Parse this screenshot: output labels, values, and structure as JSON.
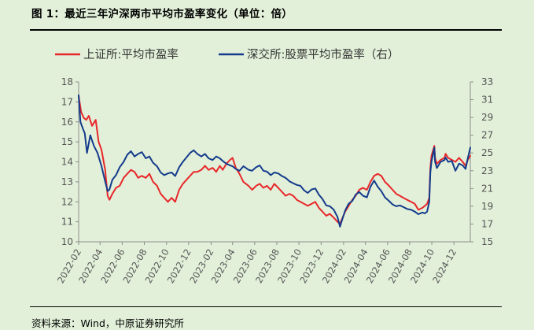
{
  "figure": {
    "title": "图 1：最近三年沪深两市平均市盈率变化（单位：倍）",
    "source": "资料来源：Wind，中原证券研究所"
  },
  "chart_data": {
    "type": "line",
    "title": "",
    "xlabel": "",
    "ylabel": "",
    "x_ticks": [
      "2022-02",
      "2022-04",
      "2022-06",
      "2022-08",
      "2022-10",
      "2022-12",
      "2023-02",
      "2023-04",
      "2023-06",
      "2023-08",
      "2023-10",
      "2023-12",
      "2024-02",
      "2024-04",
      "2024-06",
      "2024-08",
      "2024-10",
      "2024-12"
    ],
    "x_range": [
      "2022-02-01",
      "2025-01-15"
    ],
    "y_left": {
      "min": 10,
      "max": 18,
      "ticks": [
        10,
        11,
        12,
        13,
        14,
        15,
        16,
        17,
        18
      ]
    },
    "y_right": {
      "min": 15,
      "max": 33,
      "ticks": [
        15,
        17,
        19,
        21,
        23,
        25,
        27,
        29,
        31,
        33
      ]
    },
    "legend_position": "top",
    "grid": false,
    "series": [
      {
        "name": "上证所:平均市盈率",
        "axis": "left",
        "color": "#e8272a",
        "points": [
          [
            "2022-02-01",
            17.3
          ],
          [
            "2022-02-08",
            16.5
          ],
          [
            "2022-02-15",
            16.2
          ],
          [
            "2022-02-22",
            16.1
          ],
          [
            "2022-03-01",
            16.3
          ],
          [
            "2022-03-10",
            15.8
          ],
          [
            "2022-03-20",
            16.1
          ],
          [
            "2022-03-28",
            15.0
          ],
          [
            "2022-04-05",
            14.6
          ],
          [
            "2022-04-15",
            13.6
          ],
          [
            "2022-04-22",
            12.3
          ],
          [
            "2022-04-27",
            12.1
          ],
          [
            "2022-05-05",
            12.4
          ],
          [
            "2022-05-15",
            12.7
          ],
          [
            "2022-05-25",
            12.8
          ],
          [
            "2022-06-05",
            13.2
          ],
          [
            "2022-06-15",
            13.4
          ],
          [
            "2022-06-25",
            13.6
          ],
          [
            "2022-07-05",
            13.5
          ],
          [
            "2022-07-15",
            13.2
          ],
          [
            "2022-07-25",
            13.3
          ],
          [
            "2022-08-05",
            13.2
          ],
          [
            "2022-08-15",
            13.4
          ],
          [
            "2022-08-25",
            13.0
          ],
          [
            "2022-09-05",
            12.8
          ],
          [
            "2022-09-15",
            12.4
          ],
          [
            "2022-09-25",
            12.2
          ],
          [
            "2022-10-05",
            12.0
          ],
          [
            "2022-10-15",
            12.2
          ],
          [
            "2022-10-25",
            12.0
          ],
          [
            "2022-11-05",
            12.6
          ],
          [
            "2022-11-15",
            12.9
          ],
          [
            "2022-11-25",
            13.1
          ],
          [
            "2022-12-05",
            13.3
          ],
          [
            "2022-12-15",
            13.5
          ],
          [
            "2022-12-25",
            13.5
          ],
          [
            "2023-01-05",
            13.6
          ],
          [
            "2023-01-15",
            13.8
          ],
          [
            "2023-01-25",
            13.6
          ],
          [
            "2023-02-05",
            13.7
          ],
          [
            "2023-02-15",
            13.5
          ],
          [
            "2023-02-25",
            13.8
          ],
          [
            "2023-03-05",
            13.6
          ],
          [
            "2023-03-15",
            13.9
          ],
          [
            "2023-03-25",
            14.1
          ],
          [
            "2023-04-01",
            14.2
          ],
          [
            "2023-04-10",
            13.7
          ],
          [
            "2023-04-20",
            13.4
          ],
          [
            "2023-05-01",
            13.0
          ],
          [
            "2023-05-15",
            12.8
          ],
          [
            "2023-05-25",
            12.6
          ],
          [
            "2023-06-05",
            12.8
          ],
          [
            "2023-06-15",
            12.9
          ],
          [
            "2023-06-25",
            12.7
          ],
          [
            "2023-07-05",
            12.8
          ],
          [
            "2023-07-15",
            12.6
          ],
          [
            "2023-07-25",
            12.9
          ],
          [
            "2023-08-05",
            12.7
          ],
          [
            "2023-08-15",
            12.5
          ],
          [
            "2023-08-25",
            12.3
          ],
          [
            "2023-09-05",
            12.4
          ],
          [
            "2023-09-15",
            12.3
          ],
          [
            "2023-09-25",
            12.1
          ],
          [
            "2023-10-05",
            12.0
          ],
          [
            "2023-10-15",
            11.9
          ],
          [
            "2023-10-25",
            11.8
          ],
          [
            "2023-11-05",
            11.9
          ],
          [
            "2023-11-15",
            12.0
          ],
          [
            "2023-11-25",
            11.7
          ],
          [
            "2023-12-05",
            11.5
          ],
          [
            "2023-12-15",
            11.3
          ],
          [
            "2023-12-25",
            11.4
          ],
          [
            "2024-01-05",
            11.2
          ],
          [
            "2024-01-15",
            11.0
          ],
          [
            "2024-01-22",
            10.9
          ],
          [
            "2024-01-29",
            11.2
          ],
          [
            "2024-02-05",
            11.5
          ],
          [
            "2024-02-15",
            11.8
          ],
          [
            "2024-02-25",
            12.1
          ],
          [
            "2024-03-05",
            12.3
          ],
          [
            "2024-03-15",
            12.6
          ],
          [
            "2024-03-25",
            12.7
          ],
          [
            "2024-04-05",
            12.6
          ],
          [
            "2024-04-15",
            13.0
          ],
          [
            "2024-04-25",
            13.3
          ],
          [
            "2024-05-05",
            13.4
          ],
          [
            "2024-05-15",
            13.3
          ],
          [
            "2024-05-25",
            13.0
          ],
          [
            "2024-06-05",
            12.8
          ],
          [
            "2024-06-15",
            12.6
          ],
          [
            "2024-06-25",
            12.4
          ],
          [
            "2024-07-05",
            12.3
          ],
          [
            "2024-07-15",
            12.2
          ],
          [
            "2024-07-25",
            12.1
          ],
          [
            "2024-08-05",
            12.0
          ],
          [
            "2024-08-15",
            11.9
          ],
          [
            "2024-08-25",
            11.6
          ],
          [
            "2024-09-05",
            11.7
          ],
          [
            "2024-09-12",
            11.8
          ],
          [
            "2024-09-18",
            11.9
          ],
          [
            "2024-09-24",
            12.2
          ],
          [
            "2024-09-27",
            13.7
          ],
          [
            "2024-09-30",
            14.3
          ],
          [
            "2024-10-08",
            14.8
          ],
          [
            "2024-10-10",
            14.2
          ],
          [
            "2024-10-15",
            13.9
          ],
          [
            "2024-10-25",
            14.1
          ],
          [
            "2024-11-05",
            14.2
          ],
          [
            "2024-11-08",
            14.4
          ],
          [
            "2024-11-15",
            14.2
          ],
          [
            "2024-11-25",
            14.1
          ],
          [
            "2024-12-05",
            14.0
          ],
          [
            "2024-12-15",
            14.2
          ],
          [
            "2024-12-25",
            14.0
          ],
          [
            "2025-01-02",
            13.8
          ],
          [
            "2025-01-08",
            14.1
          ],
          [
            "2025-01-15",
            14.3
          ]
        ]
      },
      {
        "name": "深交所:股票平均市盈率（右）",
        "axis": "right",
        "color": "#143b8c",
        "points": [
          [
            "2022-02-01",
            31.5
          ],
          [
            "2022-02-06",
            28.5
          ],
          [
            "2022-02-12",
            27.8
          ],
          [
            "2022-02-18",
            27.2
          ],
          [
            "2022-02-24",
            25.0
          ],
          [
            "2022-03-05",
            27.0
          ],
          [
            "2022-03-15",
            25.8
          ],
          [
            "2022-03-25",
            25.0
          ],
          [
            "2022-04-05",
            23.5
          ],
          [
            "2022-04-15",
            21.8
          ],
          [
            "2022-04-22",
            20.7
          ],
          [
            "2022-04-27",
            20.9
          ],
          [
            "2022-05-05",
            22.0
          ],
          [
            "2022-05-15",
            22.5
          ],
          [
            "2022-05-25",
            23.4
          ],
          [
            "2022-06-05",
            24.0
          ],
          [
            "2022-06-15",
            24.8
          ],
          [
            "2022-06-25",
            25.2
          ],
          [
            "2022-07-05",
            24.6
          ],
          [
            "2022-07-15",
            24.9
          ],
          [
            "2022-07-25",
            25.1
          ],
          [
            "2022-08-05",
            24.4
          ],
          [
            "2022-08-15",
            24.6
          ],
          [
            "2022-08-25",
            23.9
          ],
          [
            "2022-09-05",
            23.5
          ],
          [
            "2022-09-15",
            22.8
          ],
          [
            "2022-09-25",
            22.5
          ],
          [
            "2022-10-05",
            22.7
          ],
          [
            "2022-10-15",
            22.8
          ],
          [
            "2022-10-25",
            22.4
          ],
          [
            "2022-11-05",
            23.4
          ],
          [
            "2022-11-15",
            24.0
          ],
          [
            "2022-11-25",
            24.5
          ],
          [
            "2022-12-05",
            25.0
          ],
          [
            "2022-12-15",
            25.3
          ],
          [
            "2022-12-25",
            24.9
          ],
          [
            "2023-01-05",
            24.6
          ],
          [
            "2023-01-15",
            24.9
          ],
          [
            "2023-01-25",
            24.4
          ],
          [
            "2023-02-05",
            24.2
          ],
          [
            "2023-02-15",
            24.6
          ],
          [
            "2023-02-25",
            24.4
          ],
          [
            "2023-03-05",
            24.1
          ],
          [
            "2023-03-15",
            23.8
          ],
          [
            "2023-03-25",
            23.6
          ],
          [
            "2023-04-01",
            23.5
          ],
          [
            "2023-04-10",
            23.2
          ],
          [
            "2023-04-20",
            23.0
          ],
          [
            "2023-05-01",
            23.5
          ],
          [
            "2023-05-15",
            23.1
          ],
          [
            "2023-05-25",
            23.0
          ],
          [
            "2023-06-05",
            23.4
          ],
          [
            "2023-06-15",
            23.6
          ],
          [
            "2023-06-25",
            23.0
          ],
          [
            "2023-07-05",
            22.9
          ],
          [
            "2023-07-15",
            22.5
          ],
          [
            "2023-07-25",
            22.8
          ],
          [
            "2023-08-05",
            22.7
          ],
          [
            "2023-08-15",
            22.4
          ],
          [
            "2023-08-25",
            22.2
          ],
          [
            "2023-09-05",
            21.8
          ],
          [
            "2023-09-15",
            21.6
          ],
          [
            "2023-09-25",
            21.4
          ],
          [
            "2023-10-05",
            21.3
          ],
          [
            "2023-10-15",
            20.8
          ],
          [
            "2023-10-25",
            20.5
          ],
          [
            "2023-11-05",
            20.9
          ],
          [
            "2023-11-15",
            21.0
          ],
          [
            "2023-11-25",
            20.3
          ],
          [
            "2023-12-05",
            19.8
          ],
          [
            "2023-12-15",
            19.1
          ],
          [
            "2023-12-25",
            19.0
          ],
          [
            "2024-01-05",
            18.6
          ],
          [
            "2024-01-15",
            17.8
          ],
          [
            "2024-01-22",
            16.7
          ],
          [
            "2024-01-29",
            17.6
          ],
          [
            "2024-02-05",
            18.5
          ],
          [
            "2024-02-15",
            19.3
          ],
          [
            "2024-02-25",
            19.6
          ],
          [
            "2024-03-05",
            20.3
          ],
          [
            "2024-03-15",
            20.6
          ],
          [
            "2024-03-25",
            20.2
          ],
          [
            "2024-04-05",
            20.0
          ],
          [
            "2024-04-15",
            21.2
          ],
          [
            "2024-04-25",
            21.9
          ],
          [
            "2024-05-05",
            21.2
          ],
          [
            "2024-05-15",
            20.7
          ],
          [
            "2024-05-25",
            20.0
          ],
          [
            "2024-06-05",
            19.6
          ],
          [
            "2024-06-15",
            19.2
          ],
          [
            "2024-06-25",
            19.0
          ],
          [
            "2024-07-05",
            19.1
          ],
          [
            "2024-07-15",
            18.9
          ],
          [
            "2024-07-25",
            18.7
          ],
          [
            "2024-08-05",
            18.6
          ],
          [
            "2024-08-15",
            18.4
          ],
          [
            "2024-08-25",
            18.1
          ],
          [
            "2024-09-05",
            18.3
          ],
          [
            "2024-09-12",
            18.2
          ],
          [
            "2024-09-18",
            18.4
          ],
          [
            "2024-09-24",
            19.5
          ],
          [
            "2024-09-27",
            22.8
          ],
          [
            "2024-09-30",
            24.0
          ],
          [
            "2024-10-08",
            25.6
          ],
          [
            "2024-10-10",
            24.0
          ],
          [
            "2024-10-15",
            23.3
          ],
          [
            "2024-10-25",
            24.0
          ],
          [
            "2024-11-05",
            24.2
          ],
          [
            "2024-11-08",
            24.5
          ],
          [
            "2024-11-15",
            24.0
          ],
          [
            "2024-11-25",
            24.1
          ],
          [
            "2024-12-05",
            23.0
          ],
          [
            "2024-12-15",
            23.8
          ],
          [
            "2024-12-25",
            23.6
          ],
          [
            "2025-01-02",
            23.2
          ],
          [
            "2025-01-08",
            24.4
          ],
          [
            "2025-01-15",
            25.6
          ]
        ]
      }
    ]
  }
}
